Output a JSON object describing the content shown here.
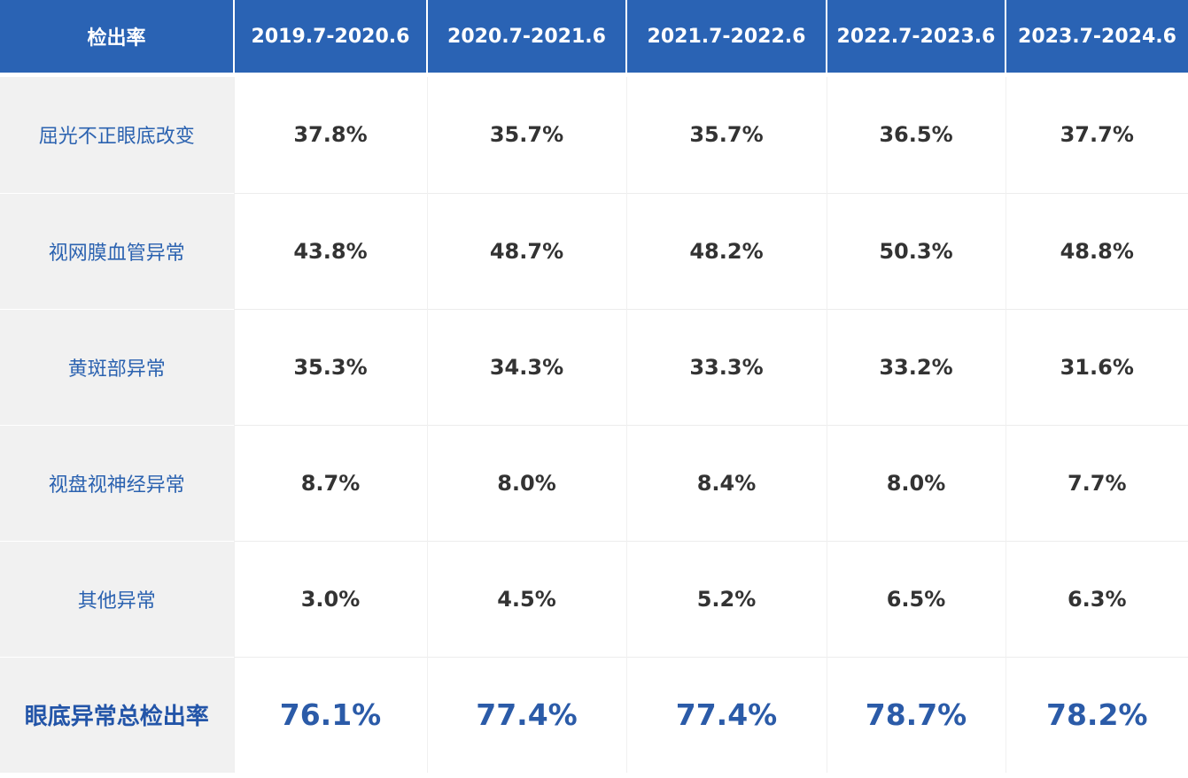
{
  "table": {
    "header_label": "检出率",
    "columns": [
      "2019.7-2020.6",
      "2020.7-2021.6",
      "2021.7-2022.6",
      "2022.7-2023.6",
      "2023.7-2024.6"
    ],
    "rows": [
      {
        "label": "屈光不正眼底改变",
        "values": [
          "37.8%",
          "35.7%",
          "35.7%",
          "36.5%",
          "37.7%"
        ]
      },
      {
        "label": "视网膜血管异常",
        "values": [
          "43.8%",
          "48.7%",
          "48.2%",
          "50.3%",
          "48.8%"
        ]
      },
      {
        "label": "黄斑部异常",
        "values": [
          "35.3%",
          "34.3%",
          "33.3%",
          "33.2%",
          "31.6%"
        ]
      },
      {
        "label": "视盘视神经异常",
        "values": [
          "8.7%",
          "8.0%",
          "8.4%",
          "8.0%",
          "7.7%"
        ]
      },
      {
        "label": "其他异常",
        "values": [
          "3.0%",
          "4.5%",
          "5.2%",
          "6.5%",
          "6.3%"
        ]
      }
    ],
    "total_row": {
      "label": "眼底异常总检出率",
      "values": [
        "76.1%",
        "77.4%",
        "77.4%",
        "78.7%",
        "78.2%"
      ]
    }
  },
  "colors": {
    "header_background": "#2a63b4",
    "label_text": "#2b62b0",
    "total_text": "#2b5ba8",
    "label_background": "#f1f1f1",
    "value_text": "#333333"
  }
}
